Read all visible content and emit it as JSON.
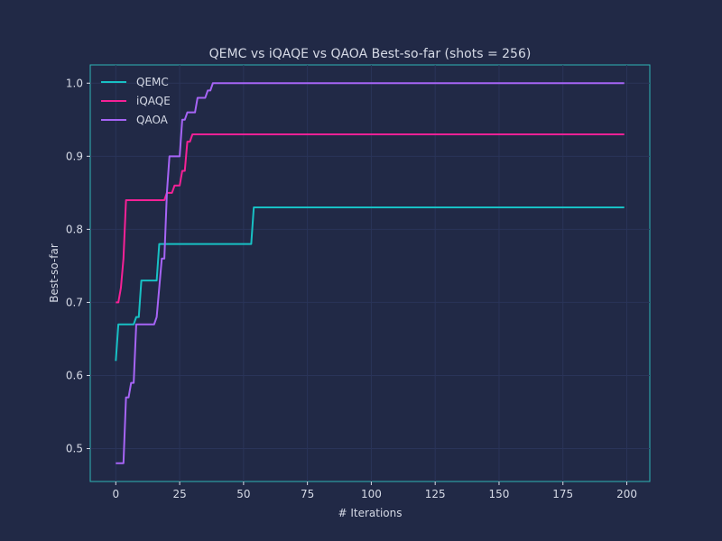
{
  "chart_data": {
    "type": "line",
    "title": "QEMC vs iQAQE vs QAOA Best-so-far (shots = 256)",
    "xlabel": "# Iterations",
    "ylabel": "Best-so-far",
    "xlim": [
      -10,
      209
    ],
    "ylim": [
      0.455,
      1.025
    ],
    "xticks": [
      0,
      25,
      50,
      75,
      100,
      125,
      150,
      175,
      200
    ],
    "xtick_labels": [
      "0",
      "25",
      "50",
      "75",
      "100",
      "125",
      "150",
      "175",
      "200"
    ],
    "yticks": [
      0.5,
      0.6,
      0.7,
      0.8,
      0.9,
      1.0
    ],
    "ytick_labels": [
      "0.5",
      "0.6",
      "0.7",
      "0.8",
      "0.9",
      "1.0"
    ],
    "grid": true,
    "legend_position": "top-left",
    "series": [
      {
        "name": "QEMC",
        "color": "#18c0c4",
        "points": [
          [
            0,
            0.62
          ],
          [
            1,
            0.67
          ],
          [
            7,
            0.67
          ],
          [
            8,
            0.68
          ],
          [
            9,
            0.68
          ],
          [
            10,
            0.73
          ],
          [
            16,
            0.73
          ],
          [
            17,
            0.78
          ],
          [
            53,
            0.78
          ],
          [
            54,
            0.83
          ],
          [
            199,
            0.83
          ]
        ]
      },
      {
        "name": "iQAQE",
        "color": "#f62196",
        "points": [
          [
            0,
            0.7
          ],
          [
            1,
            0.7
          ],
          [
            2,
            0.72
          ],
          [
            3,
            0.76
          ],
          [
            4,
            0.84
          ],
          [
            19,
            0.84
          ],
          [
            20,
            0.85
          ],
          [
            22,
            0.85
          ],
          [
            23,
            0.86
          ],
          [
            25,
            0.86
          ],
          [
            26,
            0.88
          ],
          [
            27,
            0.88
          ],
          [
            28,
            0.92
          ],
          [
            29,
            0.92
          ],
          [
            30,
            0.93
          ],
          [
            199,
            0.93
          ]
        ]
      },
      {
        "name": "QAOA",
        "color": "#a664f5",
        "points": [
          [
            0,
            0.48
          ],
          [
            3,
            0.48
          ],
          [
            4,
            0.57
          ],
          [
            5,
            0.57
          ],
          [
            6,
            0.59
          ],
          [
            7,
            0.59
          ],
          [
            8,
            0.67
          ],
          [
            15,
            0.67
          ],
          [
            16,
            0.68
          ],
          [
            18,
            0.76
          ],
          [
            19,
            0.76
          ],
          [
            20,
            0.85
          ],
          [
            21,
            0.9
          ],
          [
            25,
            0.9
          ],
          [
            26,
            0.95
          ],
          [
            27,
            0.95
          ],
          [
            28,
            0.96
          ],
          [
            31,
            0.96
          ],
          [
            32,
            0.98
          ],
          [
            35,
            0.98
          ],
          [
            36,
            0.99
          ],
          [
            37,
            0.99
          ],
          [
            38,
            1.0
          ],
          [
            199,
            1.0
          ]
        ]
      }
    ]
  }
}
